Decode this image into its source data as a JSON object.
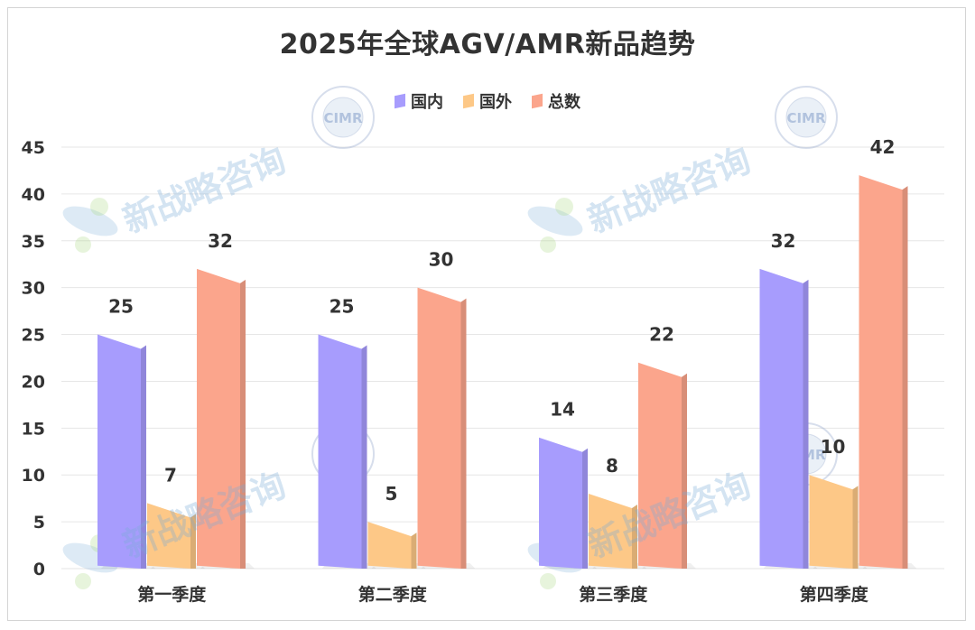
{
  "chart_data": {
    "type": "bar",
    "title": "2025年全球AGV/AMR新品趋势",
    "categories": [
      "第一季度",
      "第二季度",
      "第三季度",
      "第四季度"
    ],
    "series": [
      {
        "name": "国内",
        "values": [
          25,
          25,
          14,
          32
        ],
        "color": "#a79cfd"
      },
      {
        "name": "国外",
        "values": [
          7,
          5,
          8,
          10
        ],
        "color": "#fdc887"
      },
      {
        "name": "总数",
        "values": [
          32,
          30,
          22,
          42
        ],
        "color": "#fba58c"
      }
    ],
    "ylim": [
      0,
      45
    ],
    "yticks": [
      0,
      5,
      10,
      15,
      20,
      25,
      30,
      35,
      40,
      45
    ],
    "xlabel": "",
    "ylabel": "",
    "grid": true,
    "legend_position": "top-center"
  },
  "watermark": {
    "text": "新战略咨询",
    "seal_text": "CIMR"
  }
}
